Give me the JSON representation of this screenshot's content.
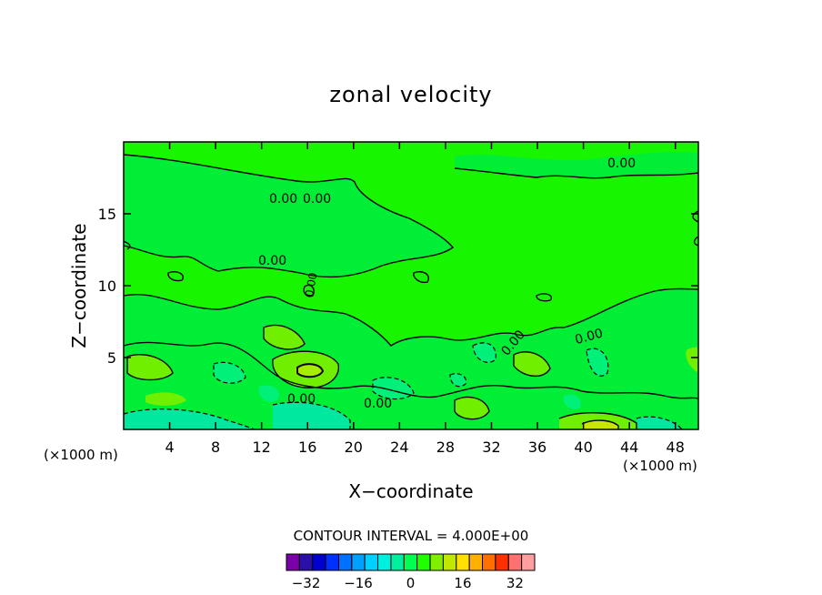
{
  "chart_data": {
    "type": "contour",
    "title": "zonal velocity",
    "xlabel": "X−coordinate",
    "ylabel": "Z−coordinate",
    "x_unit_label_left": "(×1000 m)",
    "x_unit_label_right": "(×1000 m)",
    "xlim": [
      0,
      50
    ],
    "ylim": [
      0,
      20
    ],
    "x_ticks": [
      4,
      8,
      12,
      16,
      20,
      24,
      28,
      32,
      36,
      40,
      44,
      48
    ],
    "y_ticks": [
      5,
      10,
      15
    ],
    "contour_interval_label": "CONTOUR INTERVAL = 4.000E+00",
    "contour_labels": [
      "0.00",
      "0.00",
      "0.00",
      "0.00",
      "0.00",
      "0.00",
      "0.00",
      "0.00",
      "0.00"
    ],
    "colorbar": {
      "levels": [
        -36,
        -32,
        -28,
        -24,
        -20,
        -16,
        -12,
        -8,
        -4,
        0,
        4,
        8,
        12,
        16,
        20,
        24,
        28,
        32,
        36
      ],
      "tick_labels": [
        {
          "value": -32,
          "label": "−32"
        },
        {
          "value": -16,
          "label": "−16"
        },
        {
          "value": 0,
          "label": "0"
        },
        {
          "value": 16,
          "label": "16"
        },
        {
          "value": 32,
          "label": "32"
        }
      ],
      "colors": [
        "#7a00a8",
        "#2a10a8",
        "#0000d0",
        "#0030ff",
        "#0070ff",
        "#00a0ff",
        "#00d0ff",
        "#00f0e0",
        "#00f0a0",
        "#00ff50",
        "#20ff00",
        "#80f000",
        "#c0e800",
        "#ffe000",
        "#ffb000",
        "#ff7000",
        "#ff3000",
        "#ff7070",
        "#ff9fa0"
      ]
    }
  }
}
